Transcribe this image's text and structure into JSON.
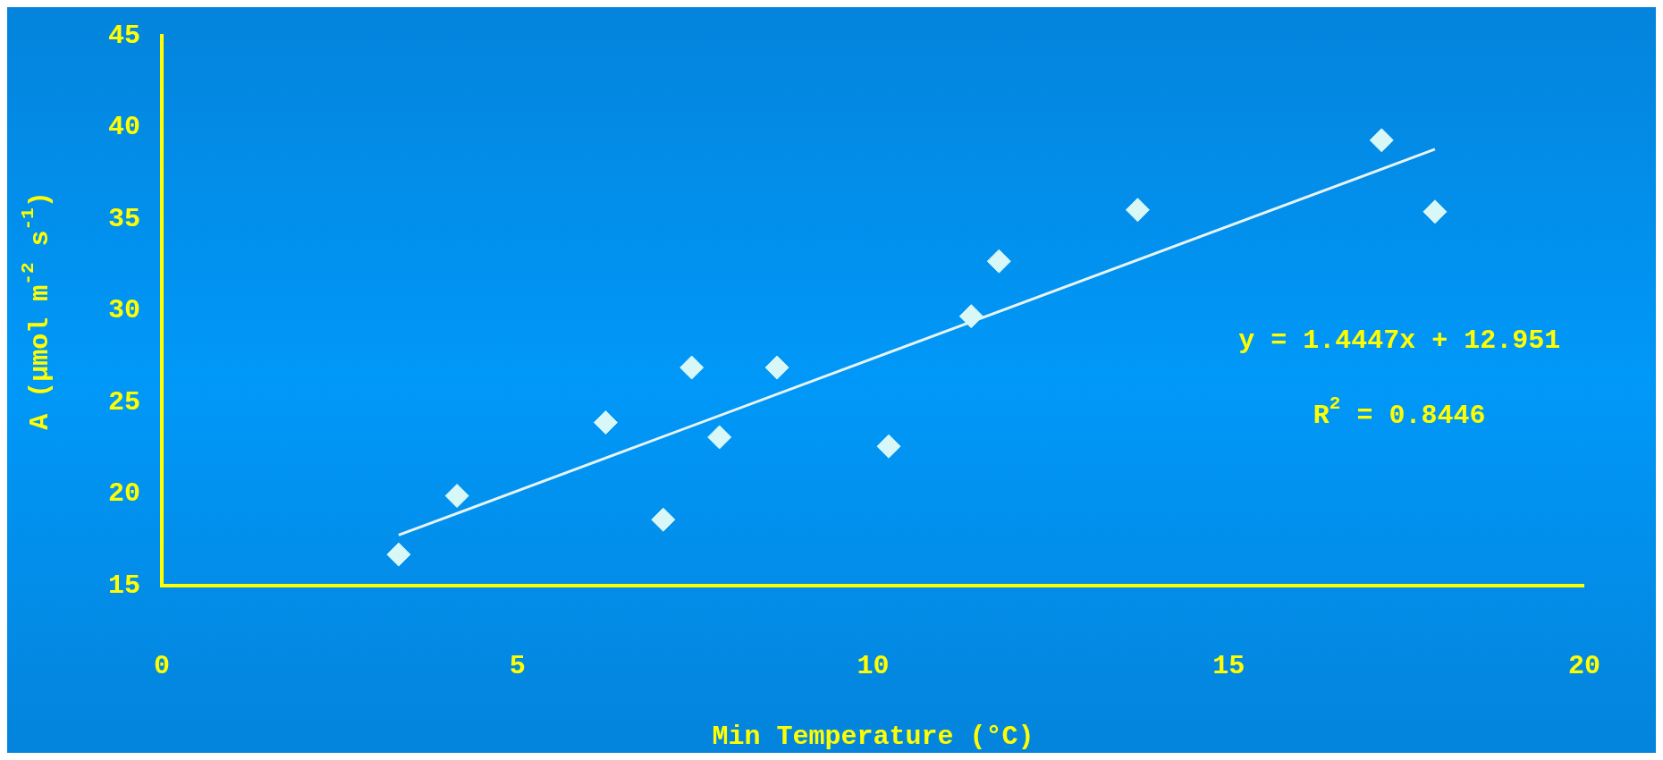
{
  "chart_data": {
    "type": "scatter",
    "xlabel": "Min Temperature (°C)",
    "ylabel": "A (μmol m$^{-2}$ s$^{-1}$)",
    "xlim": [
      0,
      20
    ],
    "ylim": [
      15,
      45
    ],
    "xticks": [
      0,
      5,
      10,
      15,
      20
    ],
    "yticks": [
      15,
      20,
      25,
      30,
      35,
      40,
      45
    ],
    "grid": false,
    "legend": false,
    "series": [
      {
        "marker": "diamond",
        "color": "#d8f8f8",
        "x": [
          3.33,
          4.15,
          6.24,
          7.05,
          7.45,
          7.84,
          8.65,
          10.22,
          11.38,
          11.77,
          13.72,
          17.15,
          17.9
        ],
        "values": [
          16.7,
          19.9,
          23.9,
          18.6,
          26.9,
          23.1,
          26.9,
          22.6,
          29.7,
          32.7,
          35.5,
          39.3,
          35.4
        ]
      },
      {
        "type": "line",
        "color": "#e8f4f4",
        "line_style": "solid",
        "x": [
          3.33,
          17.9
        ],
        "values": [
          17.76,
          38.81
        ]
      }
    ],
    "annotations": [
      "y = 1.4447x + 12.951",
      "R$^{2}$ = 0.8446"
    ]
  }
}
